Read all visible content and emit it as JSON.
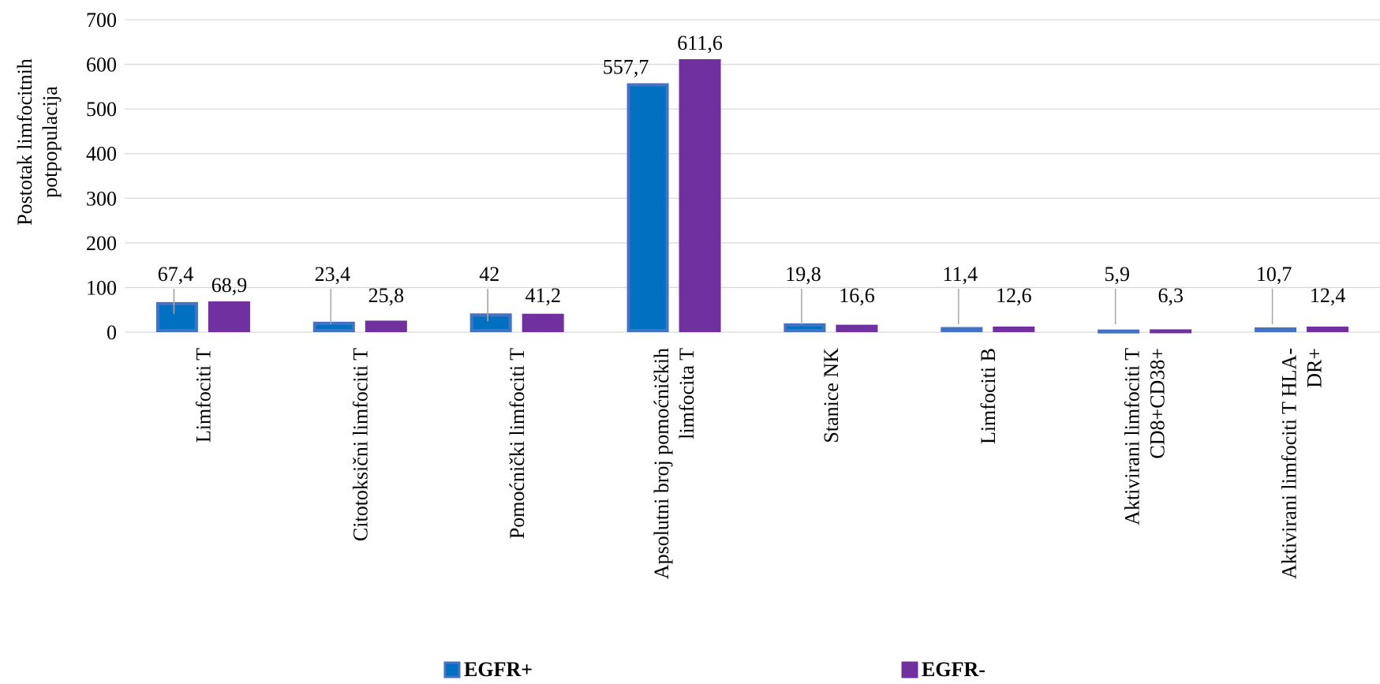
{
  "chart_data": {
    "type": "bar",
    "title": "",
    "xlabel": "",
    "ylabel": "Postotak limfocitnih potpopulacija",
    "ylabel_lines": [
      "Postotak limfocitnih",
      "potpopulacija"
    ],
    "ylim": [
      0,
      700
    ],
    "yticks": [
      0,
      100,
      200,
      300,
      400,
      500,
      600,
      700
    ],
    "yticks_text": [
      "0",
      "100",
      "200",
      "300",
      "400",
      "500",
      "600",
      "700"
    ],
    "grid": true,
    "legend_position": "bottom",
    "categories": [
      "Limfociti T",
      "Citotoksični limfociti T",
      "Pomoćnički limfociti T",
      "Apsolutni broj pomoćničkih limfocita T",
      "Stanice NK",
      "Limfociti B",
      "Aktivirani limfociti T CD8+CD38+",
      "Aktivirani limfociti T HLA-DR+"
    ],
    "category_label_lines": [
      [
        "Limfociti T"
      ],
      [
        "Citotoksični limfociti T"
      ],
      [
        "Pomoćnički limfociti T"
      ],
      [
        "Apsolutni broj pomoćničkih",
        "limfocita T"
      ],
      [
        "Stanice NK"
      ],
      [
        "Limfociti B"
      ],
      [
        "Aktivirani limfociti T",
        "CD8+CD38+"
      ],
      [
        "Aktivirani limfociti T HLA-",
        "DR+"
      ]
    ],
    "series": [
      {
        "name": "EGFR+",
        "color": "#0070c0",
        "border": "#4472c4",
        "values": [
          67.4,
          23.4,
          42,
          557.7,
          19.8,
          11.4,
          5.9,
          10.7
        ],
        "labels": [
          "67,4",
          "23,4",
          "42",
          "557,7",
          "19,8",
          "11,4",
          "5,9",
          "10,7"
        ]
      },
      {
        "name": "EGFR-",
        "color": "#7030a0",
        "border": "#7030a0",
        "values": [
          68.9,
          25.8,
          41.2,
          611.6,
          16.6,
          12.6,
          6.3,
          12.4
        ],
        "labels": [
          "68,9",
          "25,8",
          "41,2",
          "611,6",
          "16,6",
          "12,6",
          "6,3",
          "12,4"
        ]
      }
    ]
  }
}
